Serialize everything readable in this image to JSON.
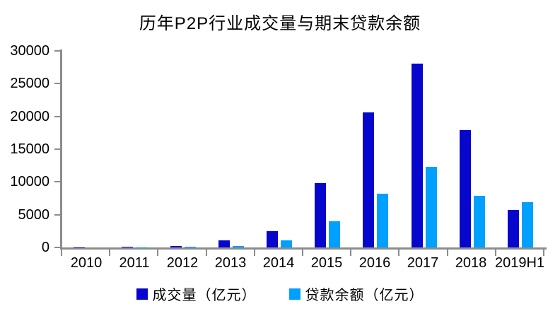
{
  "chart_data": {
    "type": "bar",
    "title": "历年P2P行业成交量与期末贷款余额",
    "categories": [
      "2010",
      "2011",
      "2012",
      "2013",
      "2014",
      "2015",
      "2016",
      "2017",
      "2018",
      "2019H1"
    ],
    "series": [
      {
        "name": "成交量（亿元）",
        "color": "#0606CC",
        "values": [
          15,
          85,
          210,
          1060,
          2530,
          9820,
          20640,
          28050,
          17950,
          5760
        ]
      },
      {
        "name": "贷款余额（亿元）",
        "color": "#00A0FF",
        "values": [
          5,
          50,
          60,
          270,
          1040,
          4040,
          8160,
          12250,
          7890,
          6930
        ]
      }
    ],
    "ylabel": "",
    "xlabel": "",
    "ylim": [
      0,
      30000
    ],
    "yticks": [
      0,
      5000,
      10000,
      15000,
      20000,
      25000,
      30000
    ],
    "grid": false,
    "legend_position": "bottom",
    "axis_color": "#8C8C8C",
    "background_color": "#FFFFFF"
  }
}
